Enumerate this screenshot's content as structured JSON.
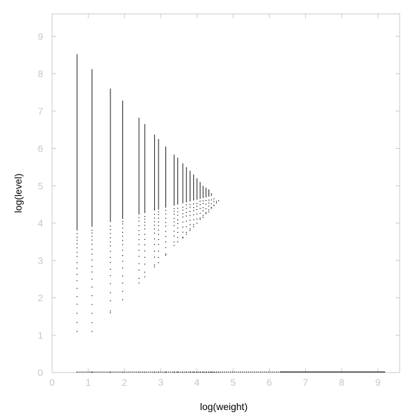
{
  "chart_data": {
    "type": "scatter",
    "title": "",
    "xlabel": "log(weight)",
    "ylabel": "log(level)",
    "xlim": [
      0,
      9.6
    ],
    "ylim": [
      0,
      9.6
    ],
    "xticks": [
      "0",
      "1",
      "2",
      "3",
      "4",
      "5",
      "6",
      "7",
      "8",
      "9"
    ],
    "yticks": [
      "0",
      "1",
      "2",
      "3",
      "4",
      "5",
      "6",
      "7",
      "8",
      "9"
    ],
    "grid": false,
    "legend": "none",
    "colors": {
      "points": "#000000",
      "frame": "#c8c8c8",
      "tick_labels": "#c8c8c8"
    },
    "columns": [
      {
        "x": 0.69,
        "y_min": 1.1,
        "y_max": 8.52
      },
      {
        "x": 1.1,
        "y_min": 1.1,
        "y_max": 8.12
      },
      {
        "x": 1.61,
        "y_min": 1.6,
        "y_max": 7.6
      },
      {
        "x": 1.95,
        "y_min": 1.95,
        "y_max": 7.28
      },
      {
        "x": 2.4,
        "y_min": 2.4,
        "y_max": 6.82
      },
      {
        "x": 2.56,
        "y_min": 2.56,
        "y_max": 6.65
      },
      {
        "x": 2.83,
        "y_min": 2.83,
        "y_max": 6.37
      },
      {
        "x": 2.94,
        "y_min": 2.94,
        "y_max": 6.25
      },
      {
        "x": 3.14,
        "y_min": 3.14,
        "y_max": 6.05
      },
      {
        "x": 3.37,
        "y_min": 3.4,
        "y_max": 5.83
      },
      {
        "x": 3.47,
        "y_min": 3.5,
        "y_max": 5.75
      },
      {
        "x": 3.61,
        "y_min": 3.6,
        "y_max": 5.6
      },
      {
        "x": 3.71,
        "y_min": 3.7,
        "y_max": 5.5
      },
      {
        "x": 3.81,
        "y_min": 3.8,
        "y_max": 5.4
      },
      {
        "x": 3.91,
        "y_min": 3.9,
        "y_max": 5.3
      },
      {
        "x": 4.0,
        "y_min": 4.0,
        "y_max": 5.2
      },
      {
        "x": 4.09,
        "y_min": 4.1,
        "y_max": 5.1
      },
      {
        "x": 4.17,
        "y_min": 4.15,
        "y_max": 5.0
      },
      {
        "x": 4.25,
        "y_min": 4.25,
        "y_max": 4.95
      },
      {
        "x": 4.33,
        "y_min": 4.3,
        "y_max": 4.9
      },
      {
        "x": 4.4,
        "y_min": 4.4,
        "y_max": 4.8
      },
      {
        "x": 4.47,
        "y_min": 4.47,
        "y_max": 4.72
      },
      {
        "x": 4.54,
        "y_min": 4.54,
        "y_max": 4.66
      },
      {
        "x": 4.6,
        "y_min": 4.6,
        "y_max": 4.62
      }
    ],
    "baseline": {
      "y": 0,
      "x_min": 0.69,
      "x_max": 9.2
    }
  }
}
